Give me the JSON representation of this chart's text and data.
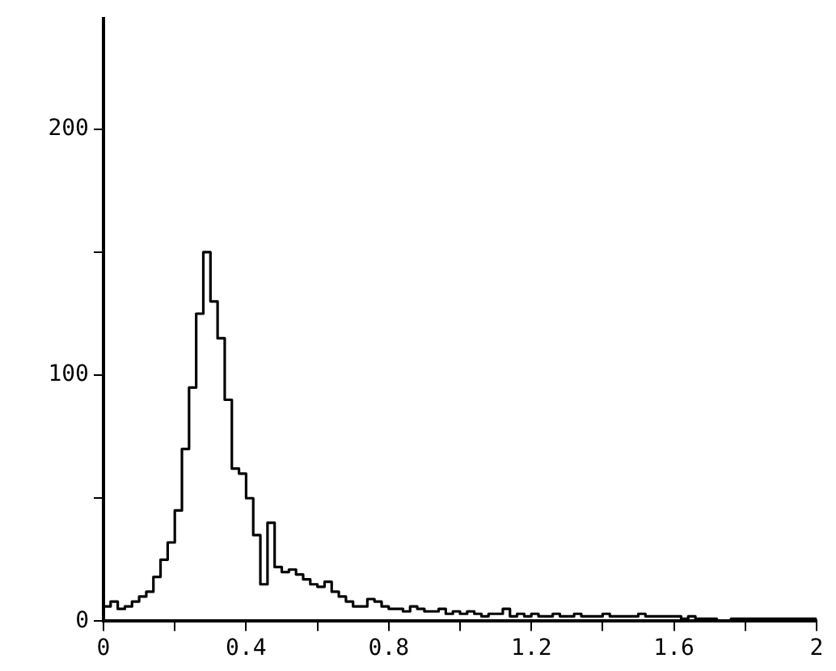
{
  "chart_data": {
    "type": "histogram",
    "bins": [
      0,
      0.02,
      0.04,
      0.06,
      0.08,
      0.1,
      0.12,
      0.14,
      0.16,
      0.18,
      0.2,
      0.22,
      0.24,
      0.26,
      0.28,
      0.3,
      0.32,
      0.34,
      0.36,
      0.38,
      0.4,
      0.42,
      0.44,
      0.46,
      0.48,
      0.5,
      0.52,
      0.54,
      0.56,
      0.58,
      0.6,
      0.62,
      0.64,
      0.66,
      0.68,
      0.7,
      0.72,
      0.74,
      0.76,
      0.78,
      0.8,
      0.82,
      0.84,
      0.86,
      0.88,
      0.9,
      0.92,
      0.94,
      0.96,
      0.98,
      1,
      1.02,
      1.04,
      1.06,
      1.08,
      1.1,
      1.12,
      1.14,
      1.16,
      1.18,
      1.2,
      1.22,
      1.24,
      1.26,
      1.28,
      1.3,
      1.32,
      1.34,
      1.36,
      1.38,
      1.4,
      1.42,
      1.44,
      1.46,
      1.48,
      1.5,
      1.52,
      1.54,
      1.56,
      1.58,
      1.6,
      1.62,
      1.64,
      1.66,
      1.68,
      1.7,
      1.72,
      1.74,
      1.76,
      1.78,
      1.8,
      1.82,
      1.84,
      1.86,
      1.88,
      1.9,
      1.92,
      1.94,
      1.96,
      1.98,
      2
    ],
    "values": [
      6,
      8,
      5,
      6,
      8,
      10,
      12,
      18,
      25,
      32,
      45,
      70,
      95,
      125,
      150,
      130,
      115,
      90,
      62,
      60,
      50,
      35,
      15,
      40,
      22,
      20,
      21,
      19,
      17,
      15,
      14,
      16,
      12,
      10,
      8,
      6,
      6,
      9,
      8,
      6,
      5,
      5,
      4,
      6,
      5,
      4,
      4,
      5,
      3,
      4,
      3,
      4,
      3,
      2,
      3,
      3,
      5,
      2,
      3,
      2,
      3,
      2,
      2,
      3,
      2,
      2,
      3,
      2,
      2,
      2,
      3,
      2,
      2,
      2,
      2,
      3,
      2,
      2,
      2,
      2,
      2,
      1,
      2,
      1,
      1,
      1,
      0,
      0,
      1,
      1,
      1,
      1,
      1,
      1,
      1,
      1,
      1,
      1,
      1,
      1
    ],
    "color": "#000000",
    "xlim": [
      0,
      2
    ],
    "xticks": [
      0,
      {
        "value": 0.2,
        "label": null
      },
      "0.4",
      {
        "value": 0.6,
        "label": null
      },
      {
        "value": 0.8,
        "label": "0.8"
      },
      {
        "value": 1.0,
        "label": null
      },
      {
        "value": 1.2,
        "label": "1.2"
      },
      {
        "value": 1.4,
        "label": null
      },
      {
        "value": 1.6,
        "label": "1.6"
      },
      {
        "value": 1.8,
        "label": null
      },
      2
    ],
    "ylim": [
      0,
      245
    ],
    "yticks": [
      0,
      {
        "value": 50,
        "label": null
      },
      100,
      {
        "value": 150,
        "label": null
      },
      200
    ],
    "grid": false
  }
}
